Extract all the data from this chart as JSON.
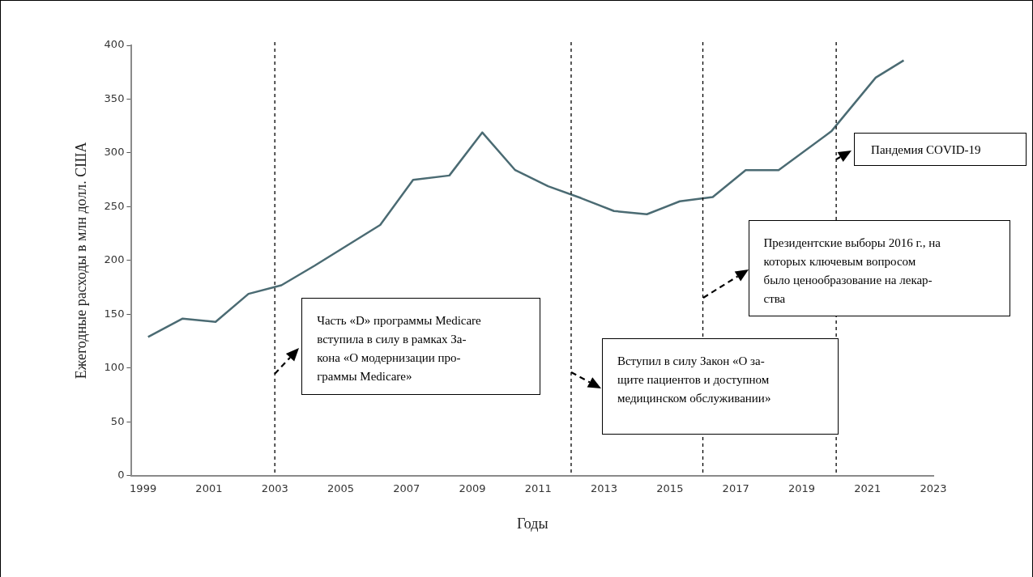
{
  "chart_data": {
    "type": "line",
    "xlabel": "Годы",
    "ylabel": "Ежегодные расходы в млн долл. США",
    "series": [
      {
        "color": "#4b6b73",
        "x": [
          1999.15,
          2000.2,
          2001.2,
          2002.2,
          2003.2,
          2004.2,
          2005.2,
          2006.2,
          2007.2,
          2008.3,
          2009.3,
          2010.3,
          2011.3,
          2012.3,
          2013.3,
          2014.3,
          2015.3,
          2016.3,
          2017.3,
          2018.3,
          2019.9,
          2021.25,
          2022.1
        ],
        "values": [
          129,
          146,
          143,
          169,
          177,
          195,
          214,
          233,
          275,
          279,
          319,
          284,
          269,
          258,
          246,
          243,
          255,
          259,
          284,
          284,
          320,
          370,
          386
        ]
      }
    ],
    "xlim": [
      1998.65,
      2023
    ],
    "xticks": [
      1999,
      2001,
      2003,
      2005,
      2007,
      2009,
      2011,
      2013,
      2015,
      2017,
      2019,
      2021,
      2023
    ],
    "ylim": [
      0,
      400
    ],
    "yticks": [
      0,
      50,
      100,
      150,
      200,
      250,
      300,
      350,
      400
    ],
    "grid": false,
    "legend": false,
    "marker": "none",
    "line_style": "solid",
    "ref_lines": [
      {
        "axis": "x",
        "value": 2003,
        "color": "#000000",
        "line_style": "dashed"
      },
      {
        "axis": "x",
        "value": 2012,
        "color": "#000000",
        "line_style": "dashed"
      },
      {
        "axis": "x",
        "value": 2016,
        "color": "#000000",
        "line_style": "dashed"
      },
      {
        "axis": "x",
        "value": 2020.05,
        "color": "#000000",
        "line_style": "dashed"
      }
    ],
    "annotations": [
      "Часть «D» программы Medicare\nвступила в силу в рамках За-\nкона «О модернизации про-\nграммы Medicare»",
      "Вступил в силу Закон «О за-\nщите пациентов и доступном\nмедицинском обслуживании»",
      "Президентские выборы 2016 г., на\nкоторых ключевым вопросом\nбыло ценообразование на лекар-\nства",
      "Пандемия COVID-19"
    ]
  }
}
